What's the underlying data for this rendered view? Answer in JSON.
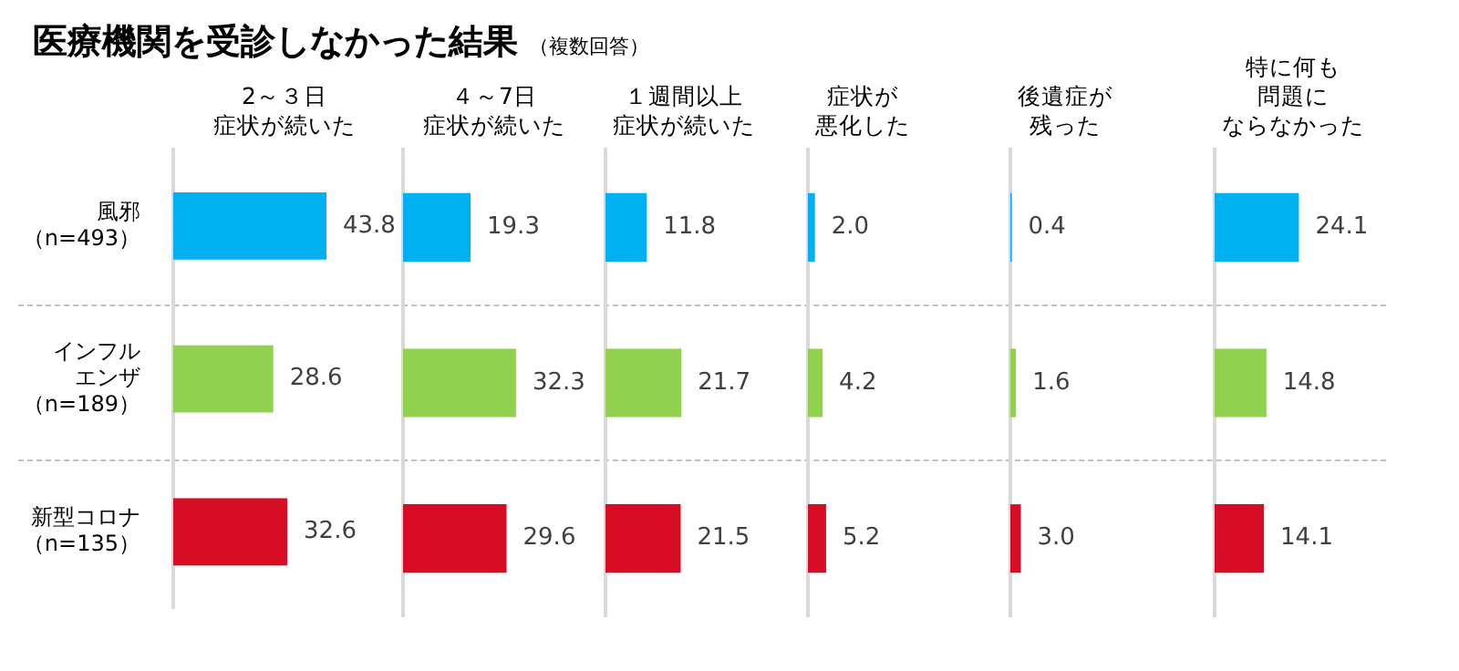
{
  "chart_data": [
    {
      "type": "other",
      "title": "医療機関を受診しなかった結果",
      "subtitle": "（複数回答）"
    },
    {
      "type": "bar",
      "orientation": "horizontal",
      "title": "2～３日症状が続いた",
      "categories": [
        "風邪（n=493）",
        "インフルエンザ（n=189）",
        "新型コロナ（n=135）"
      ],
      "values": [
        43.8,
        28.6,
        32.6
      ],
      "colors": [
        "#00b0f0",
        "#92d050",
        "#d70c25"
      ],
      "data_labels": true,
      "tick_labels": "y"
    },
    {
      "type": "bar",
      "orientation": "horizontal",
      "title": "４～7日症状が続いた",
      "categories": [
        null,
        null,
        null
      ],
      "values": [
        19.3,
        32.3,
        29.6
      ],
      "colors": [
        "#00b0f0",
        "#92d050",
        "#d70c25"
      ],
      "data_labels": true,
      "tick_labels": false
    },
    {
      "type": "bar",
      "orientation": "horizontal",
      "title": "１週間以上症状が続いた",
      "categories": [
        null,
        null,
        null
      ],
      "values": [
        11.8,
        21.7,
        21.5
      ],
      "colors": [
        "#00b0f0",
        "#92d050",
        "#d70c25"
      ],
      "data_labels": true,
      "tick_labels": false
    },
    {
      "type": "bar",
      "orientation": "horizontal",
      "title": "症状が悪化した",
      "categories": [
        null,
        null,
        null
      ],
      "values": [
        2.0,
        4.2,
        5.2
      ],
      "value_labels": [
        "2.0",
        "4.2",
        "5.2"
      ],
      "colors": [
        "#00b0f0",
        "#92d050",
        "#d70c25"
      ],
      "tick_labels": false
    },
    {
      "type": "bar",
      "orientation": "horizontal",
      "title": "後遺症が残った",
      "categories": [
        null,
        null,
        null
      ],
      "values": [
        0.4,
        1.6,
        3.0
      ],
      "value_labels": [
        "0.4",
        "1.6",
        "3.0"
      ],
      "colors": [
        "#00b0f0",
        "#92d050",
        "#d70c25"
      ],
      "tick_labels": false
    },
    {
      "type": "bar",
      "orientation": "horizontal",
      "title": "特に何も問題にならなかった",
      "categories": [
        null,
        null,
        null
      ],
      "values": [
        24.1,
        14.8,
        14.1
      ],
      "colors": [
        "#00b0f0",
        "#92d050",
        "#d70c25"
      ],
      "data_labels": true,
      "tick_labels": false
    }
  ]
}
